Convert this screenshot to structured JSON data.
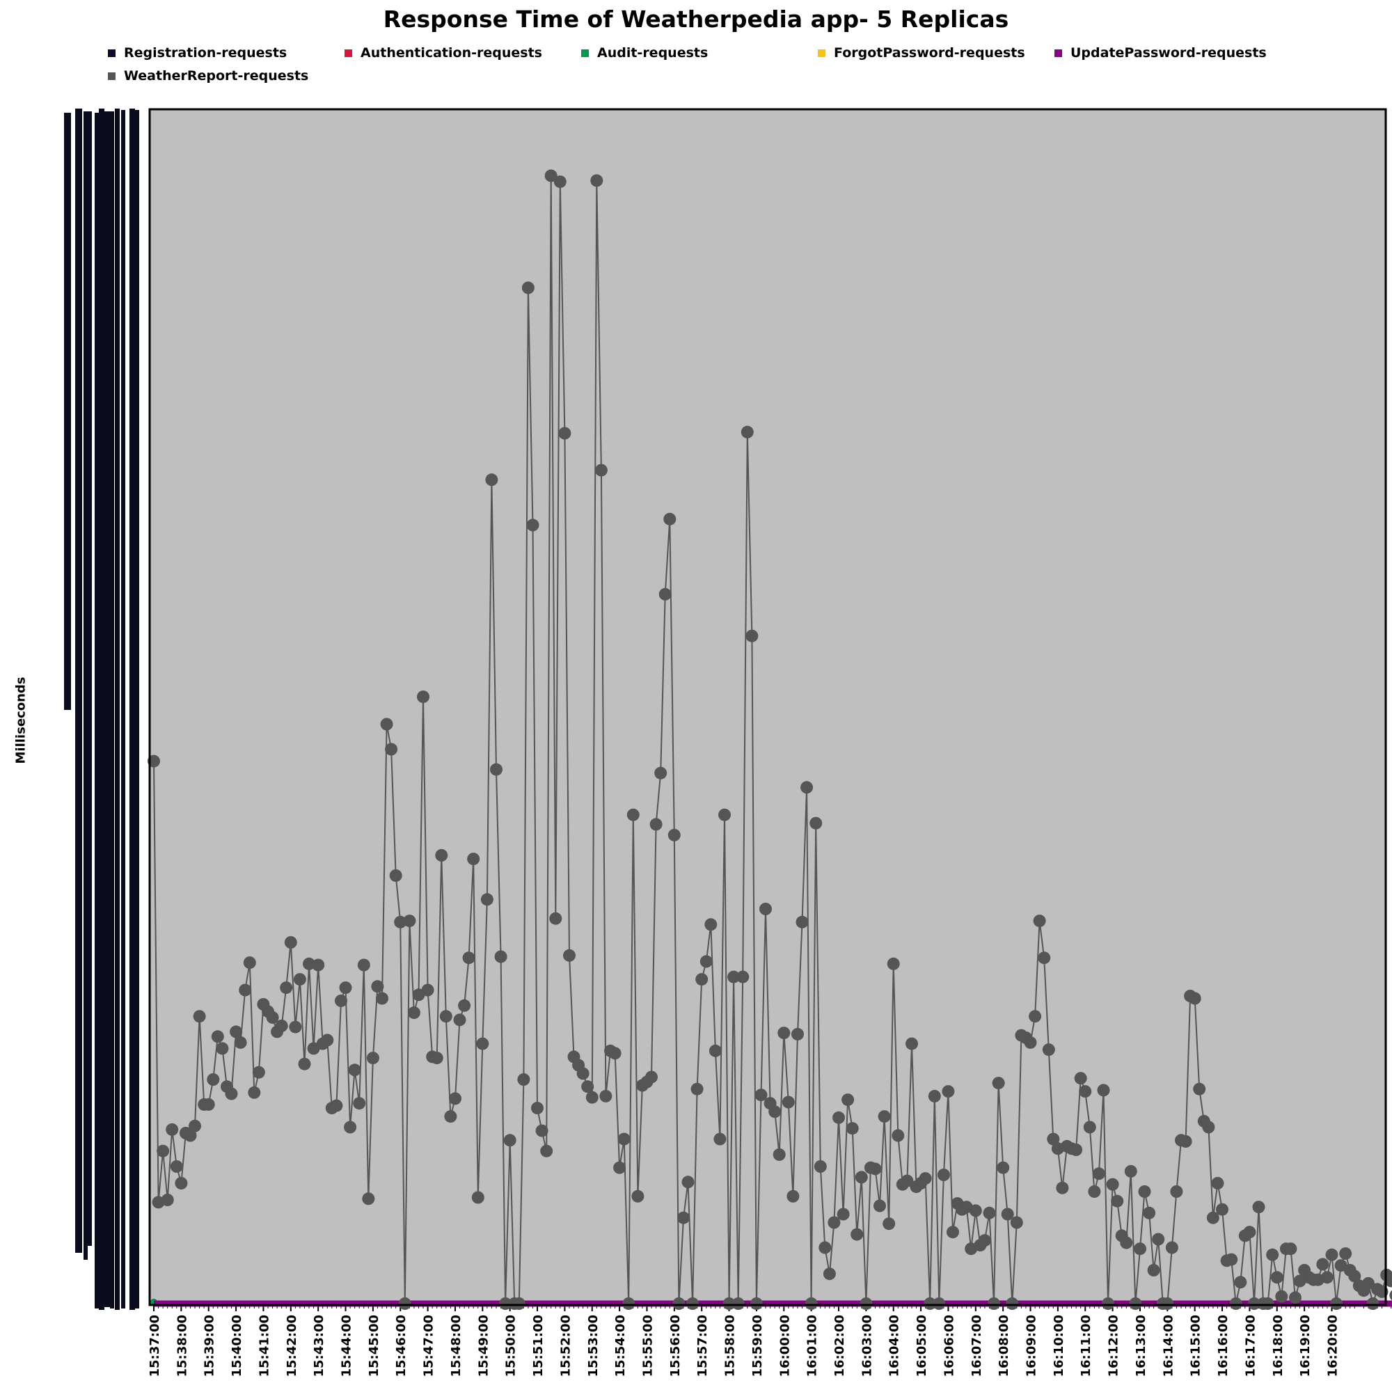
{
  "chart_data": {
    "type": "line",
    "title": "Response Time of Weatherpedia app- 5 Replicas",
    "xlabel": "",
    "ylabel": "Milliseconds",
    "legend_position": "top",
    "grid": false,
    "background_color": "#bfbfbf",
    "ylim": [
      0,
      1
    ],
    "y_ticks_legible": false,
    "x_tick_labels": [
      "15:37:00",
      "15:38:00",
      "15:39:00",
      "15:40:00",
      "15:41:00",
      "15:42:00",
      "15:43:00",
      "15:44:00",
      "15:45:00",
      "15:46:00",
      "15:47:00",
      "15:48:00",
      "15:49:00",
      "15:50:00",
      "15:51:00",
      "15:52:00",
      "15:53:00",
      "15:54:00",
      "15:55:00",
      "15:56:00",
      "15:57:00",
      "15:58:00",
      "15:59:00",
      "16:00:00",
      "16:01:00",
      "16:02:00",
      "16:03:00",
      "16:04:00",
      "16:05:00",
      "16:06:00",
      "16:07:00",
      "16:08:00",
      "16:09:00",
      "16:10:00",
      "16:11:00",
      "16:12:00",
      "16:13:00",
      "16:14:00",
      "16:15:00",
      "16:16:00",
      "16:17:00",
      "16:18:00",
      "16:19:00",
      "16:20:00"
    ],
    "x_start": "15:37:00",
    "x_interval_seconds": 10,
    "series": [
      {
        "name": "Registration-requests",
        "color": "#0b0b2e",
        "values": []
      },
      {
        "name": "Authentication-requests",
        "color": "#dc143c",
        "values": []
      },
      {
        "name": "Audit-requests",
        "color": "#009a4e",
        "values": []
      },
      {
        "name": "ForgotPassword-requests",
        "color": "#ffc20e",
        "values": []
      },
      {
        "name": "UpdatePassword-requests",
        "color": "#8b008b",
        "values": []
      },
      {
        "name": "WeatherReport-requests",
        "color": "#555555",
        "values": [
          0.455,
          0.085,
          0.128,
          0.087,
          0.146,
          0.115,
          0.101,
          0.143,
          0.141,
          0.149,
          0.241,
          0.167,
          0.167,
          0.188,
          0.224,
          0.214,
          0.182,
          0.176,
          0.228,
          0.219,
          0.263,
          0.286,
          0.177,
          0.194,
          0.251,
          0.245,
          0.24,
          0.228,
          0.233,
          0.265,
          0.303,
          0.232,
          0.272,
          0.201,
          0.285,
          0.214,
          0.284,
          0.218,
          0.221,
          0.164,
          0.166,
          0.254,
          0.265,
          0.148,
          0.196,
          0.168,
          0.284,
          0.088,
          0.206,
          0.266,
          0.256,
          0.486,
          0.465,
          0.359,
          0.32,
          0.0,
          0.321,
          0.244,
          0.259,
          0.509,
          0.263,
          0.207,
          0.206,
          0.376,
          0.241,
          0.157,
          0.172,
          0.238,
          0.25,
          0.29,
          0.373,
          0.089,
          0.218,
          0.339,
          0.691,
          0.448,
          0.291,
          0.0,
          0.137,
          0.0,
          0.0,
          0.188,
          0.852,
          0.653,
          0.164,
          0.145,
          0.128,
          0.946,
          0.323,
          0.941,
          0.73,
          0.292,
          0.207,
          0.2,
          0.193,
          0.182,
          0.173,
          0.942,
          0.699,
          0.174,
          0.212,
          0.21,
          0.114,
          0.138,
          0.0,
          0.41,
          0.09,
          0.183,
          0.186,
          0.19,
          0.402,
          0.445,
          0.595,
          0.658,
          0.393,
          0.0,
          0.072,
          0.102,
          0.0,
          0.18,
          0.272,
          0.287,
          0.318,
          0.212,
          0.138,
          0.41,
          0.0,
          0.274,
          0.0,
          0.274,
          0.731,
          0.56,
          0.0,
          0.175,
          0.331,
          0.168,
          0.161,
          0.125,
          0.227,
          0.169,
          0.09,
          0.226,
          0.32,
          0.433,
          0.0,
          0.403,
          0.115,
          0.047,
          0.025,
          0.068,
          0.156,
          0.075,
          0.171,
          0.147,
          0.058,
          0.106,
          0.0,
          0.114,
          0.113,
          0.082,
          0.157,
          0.067,
          0.285,
          0.141,
          0.1,
          0.103,
          0.218,
          0.098,
          0.101,
          0.105,
          0.0,
          0.174,
          0.0,
          0.108,
          0.178,
          0.06,
          0.084,
          0.079,
          0.081,
          0.046,
          0.078,
          0.049,
          0.053,
          0.076,
          0.0,
          0.185,
          0.114,
          0.075,
          0.0,
          0.068,
          0.225,
          0.223,
          0.219,
          0.241,
          0.321,
          0.29,
          0.213,
          0.138,
          0.13,
          0.097,
          0.132,
          0.13,
          0.129,
          0.189,
          0.178,
          0.148,
          0.094,
          0.109,
          0.179,
          0.0,
          0.1,
          0.086,
          0.057,
          0.051,
          0.111,
          0.0,
          0.046,
          0.094,
          0.076,
          0.028,
          0.054,
          0.0,
          0.0,
          0.047,
          0.094,
          0.137,
          0.136,
          0.258,
          0.256,
          0.18,
          0.153,
          0.148,
          0.072,
          0.101,
          0.079,
          0.036,
          0.037,
          0.0,
          0.018,
          0.057,
          0.06,
          0.0,
          0.081,
          0.0,
          0.0,
          0.041,
          0.022,
          0.006,
          0.046,
          0.046,
          0.005,
          0.019,
          0.028,
          0.022,
          0.02,
          0.02,
          0.033,
          0.022,
          0.041,
          0.0,
          0.032,
          0.042,
          0.028,
          0.023,
          0.015,
          0.011,
          0.017,
          0.0,
          0.012,
          0.01,
          0.024,
          0.019,
          0.007,
          0.011,
          0.004,
          0.001,
          0.0,
          0.0
        ]
      }
    ]
  }
}
